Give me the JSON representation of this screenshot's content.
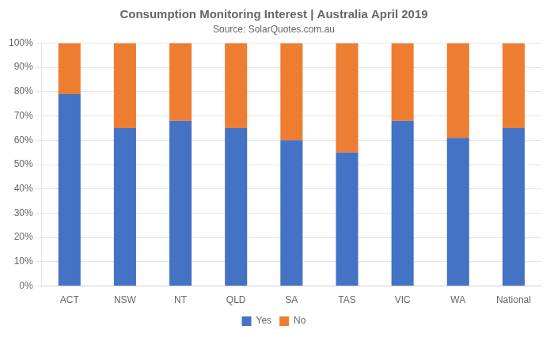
{
  "chart_data": {
    "type": "bar",
    "title": "Consumption Monitoring Interest | Australia April 2019",
    "subtitle": "Source: SolarQuotes.com.au",
    "categories": [
      "ACT",
      "NSW",
      "NT",
      "QLD",
      "SA",
      "TAS",
      "VIC",
      "WA",
      "National"
    ],
    "series": [
      {
        "name": "Yes",
        "color": "#4472C4",
        "values": [
          79,
          65,
          68,
          65,
          60,
          55,
          68,
          61,
          65
        ]
      },
      {
        "name": "No",
        "color": "#ED7D31",
        "values": [
          21,
          35,
          32,
          35,
          40,
          45,
          32,
          39,
          35
        ]
      }
    ],
    "stacked": true,
    "ylim": [
      0,
      100
    ],
    "yticks": [
      {
        "value": 0,
        "label": "0%"
      },
      {
        "value": 10,
        "label": "10%"
      },
      {
        "value": 20,
        "label": "20%"
      },
      {
        "value": 30,
        "label": "30%"
      },
      {
        "value": 40,
        "label": "40%"
      },
      {
        "value": 50,
        "label": "50%"
      },
      {
        "value": 60,
        "label": "60%"
      },
      {
        "value": 70,
        "label": "70%"
      },
      {
        "value": 80,
        "label": "80%"
      },
      {
        "value": 90,
        "label": "90%"
      },
      {
        "value": 100,
        "label": "100%"
      }
    ],
    "grid": true,
    "legend": "bottom"
  }
}
